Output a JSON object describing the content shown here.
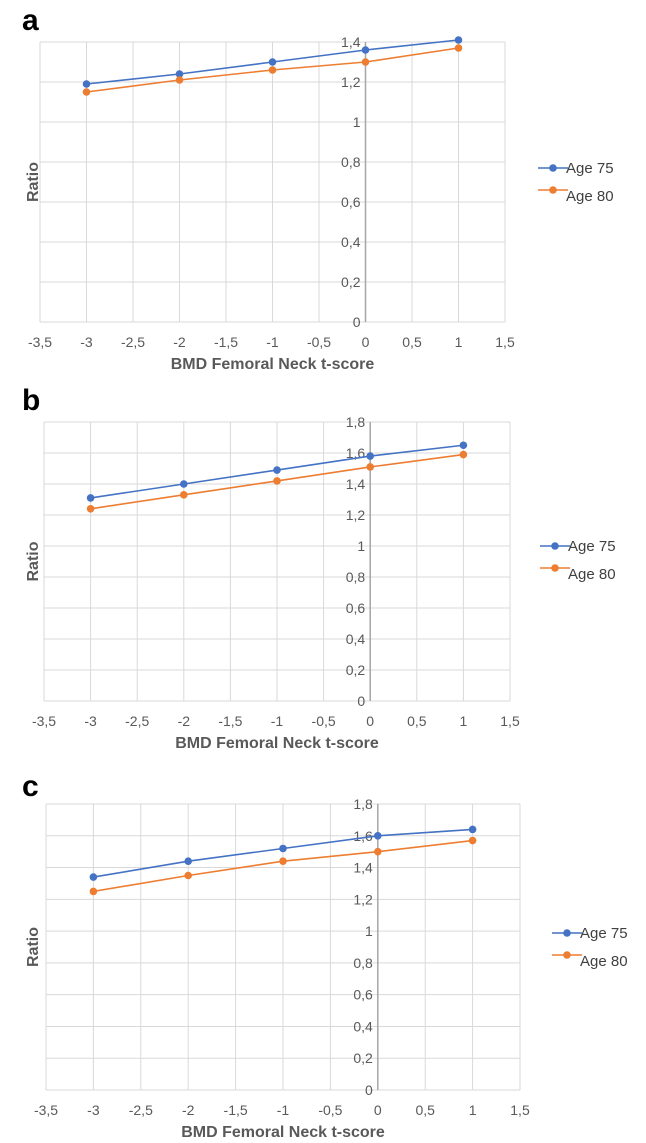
{
  "chart_data": [
    {
      "panel_label": "a",
      "type": "line",
      "xlabel": "BMD Femoral Neck t-score",
      "ylabel": "Ratio",
      "xlim": [
        -3.5,
        1.5
      ],
      "ylim": [
        0,
        1.4
      ],
      "x_ticks": [
        "-3,5",
        "-3",
        "-2,5",
        "-2",
        "-1,5",
        "-1",
        "-0,5",
        "0",
        "0,5",
        "1",
        "1,5"
      ],
      "y_ticks": [
        "0",
        "0,2",
        "0,4",
        "0,6",
        "0,8",
        "1",
        "1,2",
        "1,4"
      ],
      "x": [
        -3,
        -2,
        -1,
        0,
        1
      ],
      "series": [
        {
          "name": "Age 75",
          "color": "#4472C4",
          "values": [
            1.19,
            1.24,
            1.3,
            1.36,
            1.41
          ]
        },
        {
          "name": "Age 80",
          "color": "#ED7D31",
          "values": [
            1.15,
            1.21,
            1.26,
            1.3,
            1.37
          ]
        }
      ],
      "grid": true,
      "legend_position": "right"
    },
    {
      "panel_label": "b",
      "type": "line",
      "xlabel": "BMD Femoral Neck t-score",
      "ylabel": "Ratio",
      "xlim": [
        -3.5,
        1.5
      ],
      "ylim": [
        0,
        1.8
      ],
      "x_ticks": [
        "-3,5",
        "-3",
        "-2,5",
        "-2",
        "-1,5",
        "-1",
        "-0,5",
        "0",
        "0,5",
        "1",
        "1,5"
      ],
      "y_ticks": [
        "0",
        "0,2",
        "0,4",
        "0,6",
        "0,8",
        "1",
        "1,2",
        "1,4",
        "1,6",
        "1,8"
      ],
      "x": [
        -3,
        -2,
        -1,
        0,
        1
      ],
      "series": [
        {
          "name": "Age 75",
          "color": "#4472C4",
          "values": [
            1.31,
            1.4,
            1.49,
            1.58,
            1.65
          ]
        },
        {
          "name": "Age 80",
          "color": "#ED7D31",
          "values": [
            1.24,
            1.33,
            1.42,
            1.51,
            1.59
          ]
        }
      ],
      "grid": true,
      "legend_position": "right"
    },
    {
      "panel_label": "c",
      "type": "line",
      "xlabel": "BMD Femoral Neck t-score",
      "ylabel": "Ratio",
      "xlim": [
        -3.5,
        1.5
      ],
      "ylim": [
        0,
        1.8
      ],
      "x_ticks": [
        "-3,5",
        "-3",
        "-2,5",
        "-2",
        "-1,5",
        "-1",
        "-0,5",
        "0",
        "0,5",
        "1",
        "1,5"
      ],
      "y_ticks": [
        "0",
        "0,2",
        "0,4",
        "0,6",
        "0,8",
        "1",
        "1,2",
        "1,4",
        "1,6",
        "1,8"
      ],
      "x": [
        -3,
        -2,
        -1,
        0,
        1
      ],
      "series": [
        {
          "name": "Age 75",
          "color": "#4472C4",
          "values": [
            1.34,
            1.44,
            1.52,
            1.6,
            1.64
          ]
        },
        {
          "name": "Age 80",
          "color": "#ED7D31",
          "values": [
            1.25,
            1.35,
            1.44,
            1.5,
            1.57
          ]
        }
      ],
      "grid": true,
      "legend_position": "right"
    }
  ]
}
